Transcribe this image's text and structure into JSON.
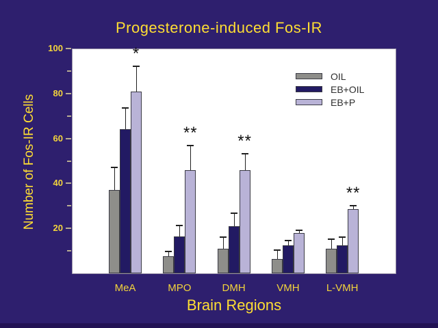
{
  "title": "Progesterone-induced Fos-IR",
  "colors": {
    "background": "#2E1F6E",
    "bottom_strip": "#221254",
    "title_text": "#FFDE33",
    "axis_text": "#F3D43C",
    "plot_background": "#FFFFFF",
    "plot_border": "#9A93A8",
    "tick_mark": "#B9AE92",
    "error_bar": "#1F1F1F",
    "significance_marker": "#111111",
    "legend_text": "#2E2E2E",
    "bar_outline": "#3A3A44"
  },
  "chart_data": {
    "type": "bar",
    "title": "Progesterone-induced Fos-IR",
    "xlabel": "Brain Regions",
    "ylabel": "Number of Fos-IR Cells",
    "ylim": [
      0,
      100
    ],
    "yticks_major": [
      20,
      40,
      60,
      80,
      100
    ],
    "yticks_minor": [
      10,
      30,
      50,
      70,
      90
    ],
    "grid": false,
    "legend_position": "upper right",
    "categories": [
      "MeA",
      "MPO",
      "DMH",
      "VMH",
      "L-VMH"
    ],
    "series": [
      {
        "name": "OIL",
        "color": "#8E8E8A",
        "values": [
          37,
          7.5,
          11,
          6.5,
          11
        ],
        "errors": [
          10.5,
          2.5,
          5.5,
          4,
          4.5
        ]
      },
      {
        "name": "EB+OIL",
        "color": "#221A63",
        "values": [
          64,
          16.5,
          21,
          12.5,
          12.5
        ],
        "errors": [
          10,
          5,
          6,
          2.5,
          4
        ]
      },
      {
        "name": "EB+P",
        "color": "#B9B3D7",
        "values": [
          81,
          46,
          46,
          18,
          28.5
        ],
        "errors": [
          11.5,
          11,
          7.5,
          1.5,
          2
        ]
      }
    ],
    "significance": [
      "*",
      "**",
      "**",
      "",
      "**"
    ]
  }
}
